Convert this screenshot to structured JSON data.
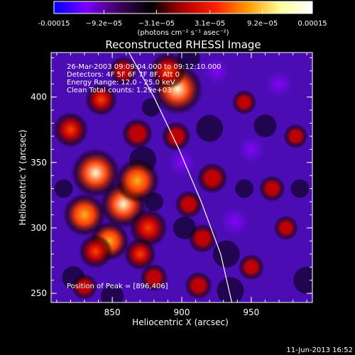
{
  "chart_data": {
    "type": "heatmap",
    "title": "Reconstructed RHESSI Image",
    "xlabel": "Heliocentric X (arcsec)",
    "ylabel": "Heliocentric Y (arcsec)",
    "xlim": [
      806,
      994
    ],
    "ylim": [
      243,
      434
    ],
    "x_ticks": [
      850,
      900,
      950
    ],
    "y_ticks": [
      250,
      300,
      350,
      400
    ],
    "grid": false,
    "colorbar": {
      "orientation": "horizontal",
      "placement": "top",
      "range": [
        -0.00015,
        0.00015
      ],
      "tick_labels": [
        "-0.00015",
        "−9.2e−05",
        "−3.1e−05",
        "3.1e−05",
        "9.2e−05",
        "0.00015"
      ],
      "tick_values": [
        -0.00015,
        -9.2e-05,
        -3.1e-05,
        3.1e-05,
        9.2e-05,
        0.00015
      ],
      "unit_label": "(photons cm⁻² s⁻¹ asec⁻²)",
      "colors": [
        "#0000ff",
        "#7a00ff",
        "#400060",
        "#000000",
        "#b00000",
        "#ff2000",
        "#ff9a00",
        "#ffff99",
        "#ffffff"
      ]
    },
    "info_lines": [
      "26-Mar-2003 09:09:04.000 to 09:12:10.000",
      "Detectors: 4F 5F 6F 7F 8F, Att 0",
      "Energy Range: 12.0 - 25.0 keV",
      "Clean     Total counts: 1.29e+03"
    ],
    "peak_label": "Position of Peak = [896,406]",
    "peak": {
      "x": 896,
      "y": 406
    },
    "limb_curve": [
      [
        862,
        434
      ],
      [
        880,
        400
      ],
      [
        898,
        360
      ],
      [
        914,
        320
      ],
      [
        928,
        280
      ],
      [
        936,
        243
      ]
    ],
    "blobs": [
      {
        "x": 838,
        "y": 342,
        "v": 0.95
      },
      {
        "x": 858,
        "y": 318,
        "v": 0.9
      },
      {
        "x": 868,
        "y": 336,
        "v": 0.8
      },
      {
        "x": 830,
        "y": 310,
        "v": 0.75
      },
      {
        "x": 876,
        "y": 300,
        "v": 0.6
      },
      {
        "x": 848,
        "y": 290,
        "v": 0.65
      },
      {
        "x": 838,
        "y": 282,
        "v": 0.45
      },
      {
        "x": 870,
        "y": 280,
        "v": 0.4
      },
      {
        "x": 897,
        "y": 406,
        "v": 1.0
      },
      {
        "x": 890,
        "y": 420,
        "v": 0.55
      },
      {
        "x": 820,
        "y": 375,
        "v": 0.5
      },
      {
        "x": 842,
        "y": 398,
        "v": 0.4
      },
      {
        "x": 868,
        "y": 372,
        "v": 0.35
      },
      {
        "x": 896,
        "y": 370,
        "v": 0.3
      },
      {
        "x": 922,
        "y": 338,
        "v": 0.35
      },
      {
        "x": 905,
        "y": 318,
        "v": 0.25
      },
      {
        "x": 915,
        "y": 292,
        "v": 0.3
      },
      {
        "x": 880,
        "y": 262,
        "v": 0.25
      },
      {
        "x": 912,
        "y": 256,
        "v": 0.25
      },
      {
        "x": 950,
        "y": 270,
        "v": 0.2
      },
      {
        "x": 975,
        "y": 300,
        "v": 0.15
      },
      {
        "x": 965,
        "y": 330,
        "v": 0.2
      },
      {
        "x": 945,
        "y": 396,
        "v": 0.15
      },
      {
        "x": 982,
        "y": 370,
        "v": 0.15
      },
      {
        "x": 858,
        "y": 420,
        "v": 0.3
      },
      {
        "x": 830,
        "y": 255,
        "v": 0.2
      },
      {
        "x": 938,
        "y": 305,
        "v": -0.25
      },
      {
        "x": 900,
        "y": 350,
        "v": -0.2
      },
      {
        "x": 950,
        "y": 360,
        "v": -0.2
      },
      {
        "x": 970,
        "y": 410,
        "v": -0.2
      },
      {
        "x": 925,
        "y": 420,
        "v": -0.15
      }
    ]
  },
  "footer": {
    "timestamp": "11-Jun-2013 16:52"
  }
}
